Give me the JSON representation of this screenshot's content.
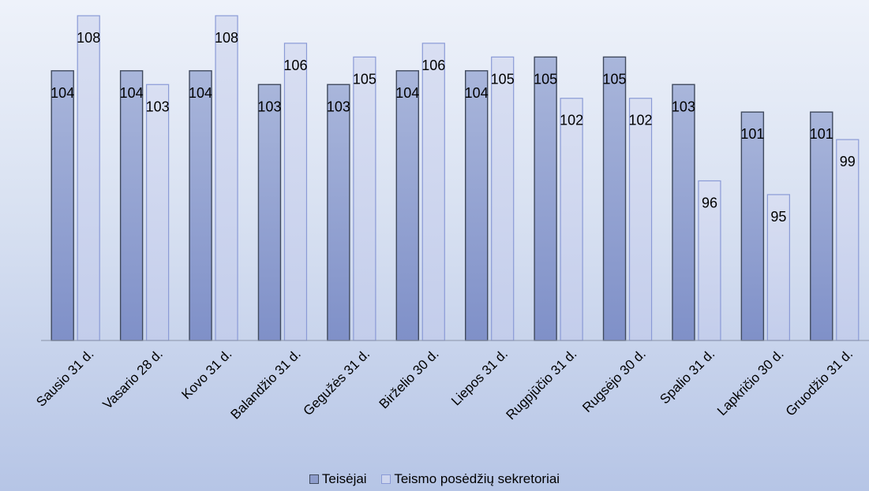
{
  "chart_data": {
    "type": "bar",
    "categories": [
      "Sausio 31 d.",
      "Vasario 28 d.",
      "Kovo 31 d.",
      "Balandžio 31 d.",
      "Gegužės 31 d.",
      "Birželio 30 d.",
      "Liepos 31 d.",
      "Rugpjūčio 31 d.",
      "Rugsėjo 30 d.",
      "Spalio 31 d.",
      "Lapkričio 30 d.",
      "Gruodžio 31 d."
    ],
    "series": [
      {
        "name": "Teisėjai",
        "values": [
          104,
          104,
          104,
          103,
          103,
          104,
          104,
          105,
          105,
          103,
          101,
          101
        ],
        "color": "#8e9dcc",
        "edge": "#404a5e"
      },
      {
        "name": "Teismo posėdžių sekretoriai",
        "values": [
          108,
          103,
          108,
          106,
          105,
          106,
          105,
          102,
          102,
          96,
          95,
          99
        ],
        "color": "#cdd5ee",
        "edge": "#8a9ad6"
      }
    ],
    "ylim": [
      84.4,
      108.8
    ],
    "grid": false,
    "legend": "bottom"
  }
}
